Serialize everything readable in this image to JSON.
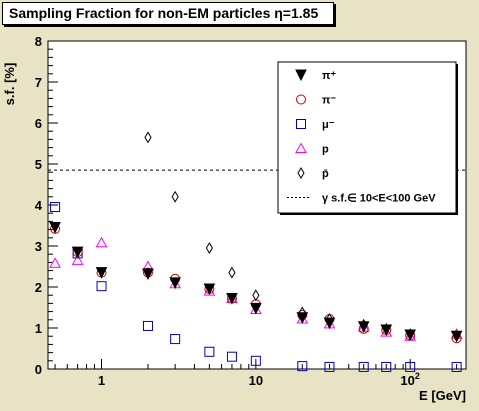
{
  "chart_data": {
    "type": "scatter",
    "title": "Sampling Fraction for non-EM particles η=1.85",
    "xlabel": "E [GeV]",
    "ylabel": "s.f. [%]",
    "xscale": "log",
    "xlim": [
      0.45,
      230
    ],
    "ylim": [
      0,
      8
    ],
    "y_ticks": [
      "0",
      "1",
      "2",
      "3",
      "4",
      "5",
      "6",
      "7",
      "8"
    ],
    "x_ticks": [
      {
        "value": 1,
        "label": "1"
      },
      {
        "value": 10,
        "label": "10"
      },
      {
        "value": 100,
        "label": "10",
        "sup": "2"
      }
    ],
    "legend_position": "top-right",
    "reference_line": {
      "label": "γ s.f.∈ 10<E<100 GeV",
      "value": 4.85,
      "color": "#000000"
    },
    "series": [
      {
        "name": "π⁺",
        "marker": "triangle-down-filled",
        "color": "#000000",
        "x": [
          0.5,
          0.7,
          1,
          2,
          3,
          5,
          7,
          10,
          20,
          30,
          50,
          70,
          100,
          200
        ],
        "y": [
          3.45,
          2.85,
          2.35,
          2.32,
          2.1,
          1.95,
          1.72,
          1.48,
          1.25,
          1.12,
          1.03,
          0.95,
          0.83,
          0.8
        ]
      },
      {
        "name": "π⁻",
        "marker": "circle-open",
        "color": "#cc0000",
        "x": [
          0.5,
          0.7,
          1,
          2,
          3,
          5,
          7,
          10,
          20,
          30,
          50,
          70,
          100,
          200
        ],
        "y": [
          3.42,
          2.85,
          2.35,
          2.35,
          2.2,
          1.95,
          1.72,
          1.58,
          1.32,
          1.22,
          0.98,
          0.95,
          0.82,
          0.75
        ]
      },
      {
        "name": "μ⁻",
        "marker": "square-open",
        "color": "#0000cc",
        "x": [
          0.5,
          0.7,
          1,
          2,
          3,
          5,
          7,
          10,
          20,
          30,
          50,
          70,
          100,
          200
        ],
        "y": [
          3.95,
          2.82,
          2.02,
          1.05,
          0.73,
          0.42,
          0.3,
          0.2,
          0.07,
          0.05,
          0.05,
          0.05,
          0.05,
          0.05
        ]
      },
      {
        "name": "p",
        "marker": "triangle-up-open",
        "color": "#ff00ff",
        "x": [
          0.5,
          0.7,
          1,
          2,
          3,
          5,
          7,
          10,
          20,
          30,
          50,
          70,
          100,
          200
        ],
        "y": [
          2.58,
          2.65,
          3.08,
          2.5,
          2.08,
          1.9,
          1.72,
          1.45,
          1.22,
          1.1,
          1.02,
          0.9,
          0.8,
          0.85
        ]
      },
      {
        "name": "p̄",
        "marker": "diamond-open",
        "color": "#000000",
        "x": [
          2,
          3,
          5,
          7,
          10,
          20,
          30,
          50,
          70,
          100,
          200
        ],
        "y": [
          5.65,
          4.2,
          2.95,
          2.35,
          1.8,
          1.38,
          1.22,
          1.08,
          0.98,
          0.85,
          0.8
        ]
      }
    ]
  }
}
